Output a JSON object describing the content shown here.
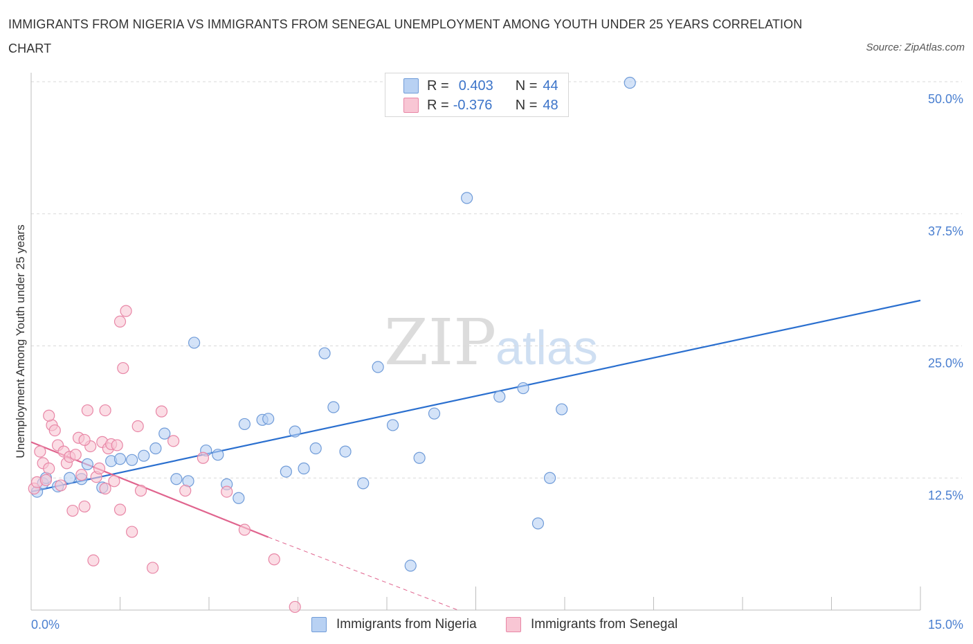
{
  "title": "IMMIGRANTS FROM NIGERIA VS IMMIGRANTS FROM SENEGAL UNEMPLOYMENT AMONG YOUTH UNDER 25 YEARS CORRELATION CHART",
  "source": "Source: ZipAtlas.com",
  "watermark": {
    "zip": "ZIP",
    "atlas": "atlas"
  },
  "legend": {
    "rows": [
      {
        "r_label": "R =",
        "r_value": "0.403",
        "n_label": "N =",
        "n_value": "44"
      },
      {
        "r_label": "R =",
        "r_value": "-0.376",
        "n_label": "N =",
        "n_value": "48"
      }
    ]
  },
  "colors": {
    "nigeria_fill": "#b8d1f3",
    "nigeria_stroke": "#6f9bd8",
    "nigeria_line": "#2a6fcf",
    "senegal_fill": "#f8c6d4",
    "senegal_stroke": "#e886a6",
    "senegal_line": "#e0648e",
    "grid": "#d9d9d9",
    "tick_text": "#4a7fd0"
  },
  "chart_data": {
    "type": "scatter",
    "ylabel": "Unemployment Among Youth under 25 years",
    "xlim": [
      0.0,
      15.0
    ],
    "ylim": [
      0.0,
      50.0
    ],
    "x_tick_labels": [
      "0.0%",
      "15.0%"
    ],
    "y_ticks": [
      12.5,
      25.0,
      37.5,
      50.0
    ],
    "y_tick_labels": [
      "12.5%",
      "25.0%",
      "37.5%",
      "50.0%"
    ],
    "grid": "horizontal dashed",
    "series": [
      {
        "name": "Immigrants from Nigeria",
        "points": [
          [
            0.1,
            11.2
          ],
          [
            0.2,
            12.0
          ],
          [
            0.25,
            12.5
          ],
          [
            0.45,
            11.7
          ],
          [
            0.65,
            12.5
          ],
          [
            0.85,
            12.4
          ],
          [
            0.95,
            13.8
          ],
          [
            1.2,
            11.6
          ],
          [
            1.35,
            14.1
          ],
          [
            1.5,
            14.3
          ],
          [
            1.7,
            14.2
          ],
          [
            1.9,
            14.6
          ],
          [
            2.1,
            15.3
          ],
          [
            2.25,
            16.7
          ],
          [
            2.45,
            12.4
          ],
          [
            2.65,
            12.2
          ],
          [
            2.75,
            25.3
          ],
          [
            2.95,
            15.1
          ],
          [
            3.15,
            14.7
          ],
          [
            3.3,
            11.9
          ],
          [
            3.5,
            10.6
          ],
          [
            3.6,
            17.6
          ],
          [
            3.9,
            18.0
          ],
          [
            4.0,
            18.1
          ],
          [
            4.3,
            13.1
          ],
          [
            4.45,
            16.9
          ],
          [
            4.6,
            13.4
          ],
          [
            4.8,
            15.3
          ],
          [
            4.95,
            24.3
          ],
          [
            5.1,
            19.2
          ],
          [
            5.3,
            15.0
          ],
          [
            5.6,
            12.0
          ],
          [
            5.85,
            23.0
          ],
          [
            6.1,
            17.5
          ],
          [
            6.4,
            4.2
          ],
          [
            6.55,
            14.4
          ],
          [
            6.8,
            18.6
          ],
          [
            7.35,
            39.0
          ],
          [
            7.9,
            20.2
          ],
          [
            8.3,
            21.0
          ],
          [
            8.55,
            8.2
          ],
          [
            8.75,
            12.5
          ],
          [
            8.95,
            19.0
          ],
          [
            10.1,
            49.9
          ]
        ]
      },
      {
        "name": "Immigrants from Senegal",
        "points": [
          [
            0.05,
            11.5
          ],
          [
            0.1,
            12.1
          ],
          [
            0.15,
            15.0
          ],
          [
            0.2,
            13.9
          ],
          [
            0.25,
            12.3
          ],
          [
            0.3,
            13.4
          ],
          [
            0.35,
            17.5
          ],
          [
            0.4,
            17.0
          ],
          [
            0.45,
            15.6
          ],
          [
            0.5,
            11.8
          ],
          [
            0.55,
            15.0
          ],
          [
            0.6,
            13.9
          ],
          [
            0.65,
            14.5
          ],
          [
            0.7,
            9.4
          ],
          [
            0.75,
            14.7
          ],
          [
            0.8,
            16.3
          ],
          [
            0.85,
            12.8
          ],
          [
            0.9,
            9.8
          ],
          [
            0.95,
            18.9
          ],
          [
            1.0,
            15.5
          ],
          [
            1.05,
            4.7
          ],
          [
            1.1,
            12.6
          ],
          [
            1.15,
            13.4
          ],
          [
            1.2,
            15.9
          ],
          [
            1.25,
            18.9
          ],
          [
            1.3,
            15.3
          ],
          [
            1.35,
            15.7
          ],
          [
            1.4,
            12.2
          ],
          [
            1.45,
            15.6
          ],
          [
            1.5,
            9.5
          ],
          [
            1.6,
            28.3
          ],
          [
            1.7,
            7.4
          ],
          [
            1.85,
            11.3
          ],
          [
            2.05,
            4.0
          ],
          [
            2.2,
            18.8
          ],
          [
            2.4,
            16.0
          ],
          [
            2.6,
            11.3
          ],
          [
            2.9,
            14.4
          ],
          [
            3.3,
            11.2
          ],
          [
            3.6,
            7.6
          ],
          [
            4.1,
            4.8
          ],
          [
            4.45,
            0.3
          ],
          [
            1.5,
            27.3
          ],
          [
            1.55,
            22.9
          ],
          [
            1.8,
            17.4
          ],
          [
            1.25,
            11.5
          ],
          [
            0.3,
            18.4
          ],
          [
            0.9,
            16.1
          ]
        ]
      }
    ],
    "trend_lines": [
      {
        "series": "Immigrants from Nigeria",
        "x_start": 0.0,
        "y_start": 11.2,
        "x_end": 15.0,
        "y_end": 29.3,
        "style": "solid"
      },
      {
        "series": "Immigrants from Senegal",
        "x_start": 0.0,
        "y_start": 15.9,
        "x_end": 4.0,
        "y_end": 6.9,
        "style": "solid"
      },
      {
        "series": "Immigrants from Senegal",
        "x_start": 4.0,
        "y_start": 6.9,
        "x_end": 7.2,
        "y_end": 0.0,
        "style": "dashed"
      }
    ]
  },
  "bottom_legend": {
    "nigeria_label": "Immigrants from Nigeria",
    "senegal_label": "Immigrants from Senegal"
  }
}
